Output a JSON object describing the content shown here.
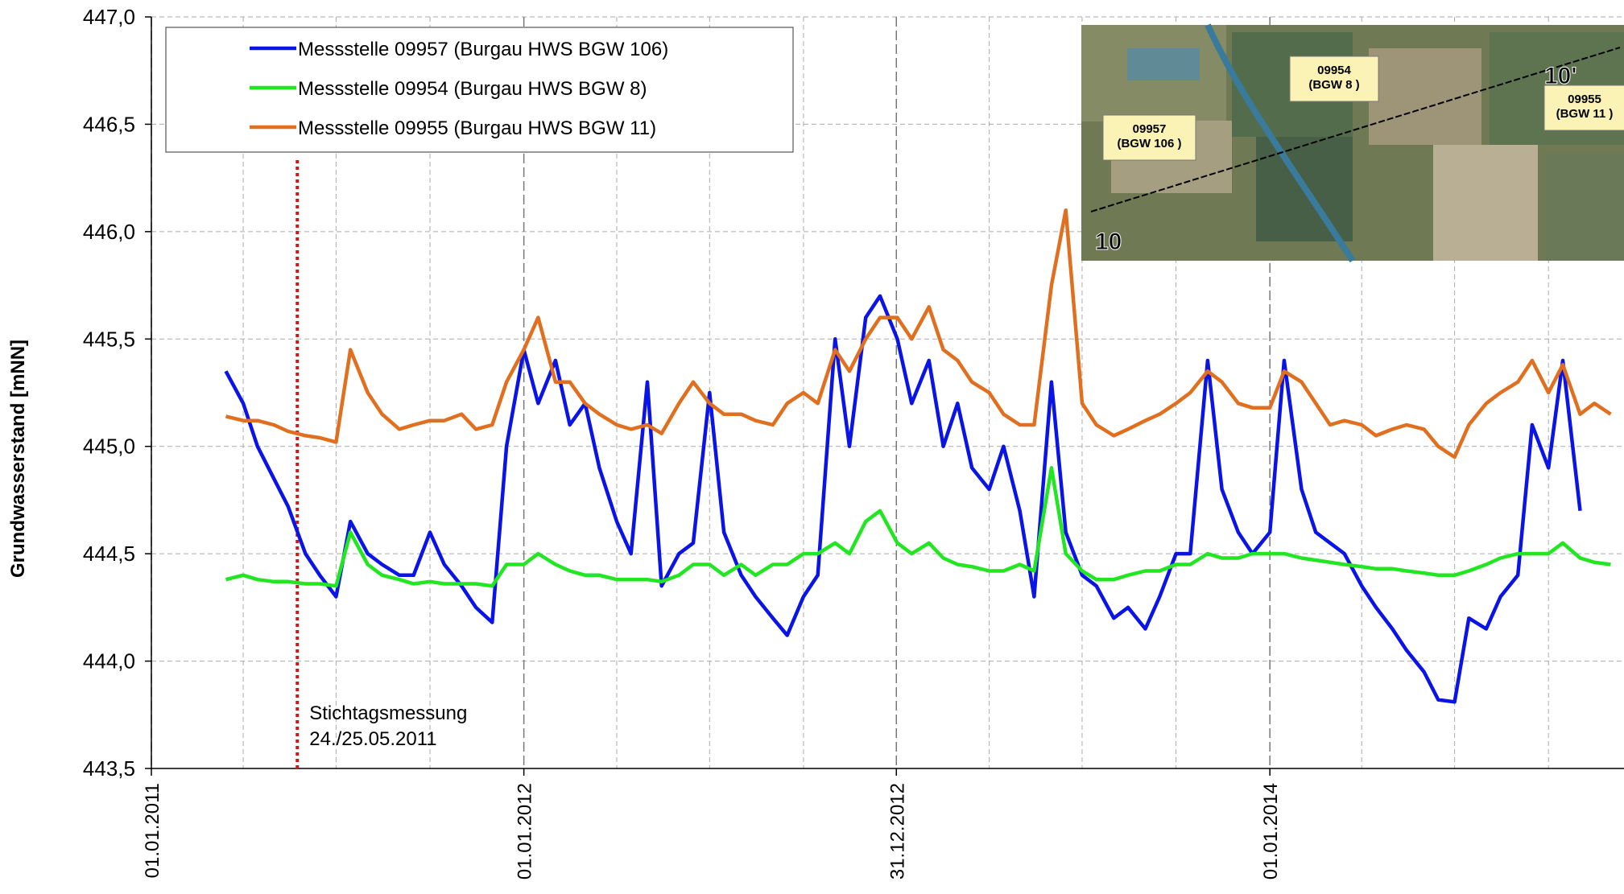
{
  "chart_data": {
    "type": "line",
    "y_label": "Grundwasserstand [mNN]",
    "ylim": [
      443.5,
      447.0
    ],
    "yticks": [
      {
        "value": 443.5,
        "label": "443,5"
      },
      {
        "value": 444,
        "label": "444,0"
      },
      {
        "value": 444.5,
        "label": "444,5"
      },
      {
        "value": 445,
        "label": "445,0"
      },
      {
        "value": 445.5,
        "label": "445,5"
      },
      {
        "value": 446,
        "label": "446,0"
      },
      {
        "value": 446.5,
        "label": "446,5"
      },
      {
        "value": 447,
        "label": "447,0"
      }
    ],
    "xlim": [
      "2011-01-01",
      "2014-12-14"
    ],
    "xticks": [
      {
        "value": "2011-01-01",
        "label": "01.01.2011"
      },
      {
        "value": "2012-01-01",
        "label": "01.01.2012"
      },
      {
        "value": "2012-12-31",
        "label": "31.12.2012"
      },
      {
        "value": "2014-01-01",
        "label": "01.01.2014"
      }
    ],
    "minor_xticks": [
      "2011-04-01",
      "2011-07-01",
      "2011-10-01",
      "2012-04-01",
      "2012-07-01",
      "2012-10-01",
      "2013-04-01",
      "2013-07-01",
      "2013-10-01",
      "2014-04-01",
      "2014-07-01",
      "2014-10-01"
    ],
    "grid": true,
    "legend": "upper-left",
    "x": [
      "2011-03-15",
      "2011-04-01",
      "2011-04-15",
      "2011-05-01",
      "2011-05-15",
      "2011-06-01",
      "2011-06-15",
      "2011-07-01",
      "2011-07-15",
      "2011-08-01",
      "2011-08-15",
      "2011-09-01",
      "2011-09-15",
      "2011-10-01",
      "2011-10-15",
      "2011-11-01",
      "2011-11-15",
      "2011-12-01",
      "2011-12-15",
      "2012-01-01",
      "2012-01-15",
      "2012-02-01",
      "2012-02-15",
      "2012-03-01",
      "2012-03-15",
      "2012-04-01",
      "2012-04-15",
      "2012-05-01",
      "2012-05-15",
      "2012-06-01",
      "2012-06-15",
      "2012-07-01",
      "2012-07-15",
      "2012-08-01",
      "2012-08-15",
      "2012-09-01",
      "2012-09-15",
      "2012-10-01",
      "2012-10-15",
      "2012-11-01",
      "2012-11-15",
      "2012-12-01",
      "2012-12-15",
      "2013-01-01",
      "2013-01-15",
      "2013-02-01",
      "2013-02-15",
      "2013-03-01",
      "2013-03-15",
      "2013-04-01",
      "2013-04-15",
      "2013-05-01",
      "2013-05-15",
      "2013-06-01",
      "2013-06-15",
      "2013-07-01",
      "2013-07-15",
      "2013-08-01",
      "2013-08-15",
      "2013-09-01",
      "2013-09-15",
      "2013-10-01",
      "2013-10-15",
      "2013-11-01",
      "2013-11-15",
      "2013-12-01",
      "2013-12-15",
      "2014-01-01",
      "2014-01-15",
      "2014-02-01",
      "2014-02-15",
      "2014-03-01",
      "2014-03-15",
      "2014-04-01",
      "2014-04-15",
      "2014-05-01",
      "2014-05-15",
      "2014-06-01",
      "2014-06-15",
      "2014-07-01",
      "2014-07-15",
      "2014-08-01",
      "2014-08-15",
      "2014-09-01",
      "2014-09-15",
      "2014-10-01",
      "2014-10-15",
      "2014-11-01",
      "2014-11-15",
      "2014-12-01"
    ],
    "series": [
      {
        "name": "Messstelle 09957 (Burgau HWS BGW 106)",
        "color": "#0a14e6",
        "values": [
          445.35,
          445.2,
          445.0,
          444.85,
          444.72,
          444.5,
          444.4,
          444.3,
          444.65,
          444.5,
          444.45,
          444.4,
          444.4,
          444.6,
          444.45,
          444.35,
          444.25,
          444.18,
          445.0,
          445.45,
          445.2,
          445.4,
          445.1,
          445.2,
          444.9,
          444.65,
          444.5,
          445.3,
          444.35,
          444.5,
          444.55,
          445.25,
          444.6,
          444.4,
          444.3,
          444.2,
          444.12,
          444.3,
          444.4,
          445.5,
          445.0,
          445.6,
          445.7,
          445.5,
          445.2,
          445.4,
          445.0,
          445.2,
          444.9,
          444.8,
          445.0,
          444.7,
          444.3,
          445.3,
          444.6,
          444.4,
          444.35,
          444.2,
          444.25,
          444.15,
          444.3,
          444.5,
          444.5,
          445.4,
          444.8,
          444.6,
          444.5,
          444.6,
          445.4,
          444.8,
          444.6,
          444.55,
          444.5,
          444.35,
          444.25,
          444.15,
          444.05,
          443.95,
          443.82,
          443.81,
          444.2,
          444.15,
          444.3,
          444.4,
          445.1,
          444.9,
          445.4,
          444.7,
          null,
          null
        ]
      },
      {
        "name": "Messstelle 09954 (Burgau HWS BGW 8)",
        "color": "#22e622",
        "values": [
          444.38,
          444.4,
          444.38,
          444.37,
          444.37,
          444.36,
          444.36,
          444.35,
          444.6,
          444.45,
          444.4,
          444.38,
          444.36,
          444.37,
          444.36,
          444.36,
          444.36,
          444.35,
          444.45,
          444.45,
          444.5,
          444.45,
          444.42,
          444.4,
          444.4,
          444.38,
          444.38,
          444.38,
          444.37,
          444.4,
          444.45,
          444.45,
          444.4,
          444.45,
          444.4,
          444.45,
          444.45,
          444.5,
          444.5,
          444.55,
          444.5,
          444.65,
          444.7,
          444.55,
          444.5,
          444.55,
          444.48,
          444.45,
          444.44,
          444.42,
          444.42,
          444.45,
          444.42,
          444.9,
          444.5,
          444.42,
          444.38,
          444.38,
          444.4,
          444.42,
          444.42,
          444.45,
          444.45,
          444.5,
          444.48,
          444.48,
          444.5,
          444.5,
          444.5,
          444.48,
          444.47,
          444.46,
          444.45,
          444.44,
          444.43,
          444.43,
          444.42,
          444.41,
          444.4,
          444.4,
          444.42,
          444.45,
          444.48,
          444.5,
          444.5,
          444.5,
          444.55,
          444.48,
          444.46,
          444.45
        ]
      },
      {
        "name": "Messstelle 09955 (Burgau HWS BGW 11)",
        "color": "#e07020",
        "values": [
          445.14,
          445.12,
          445.12,
          445.1,
          445.07,
          445.05,
          445.04,
          445.02,
          445.45,
          445.25,
          445.15,
          445.08,
          445.1,
          445.12,
          445.12,
          445.15,
          445.08,
          445.1,
          445.3,
          445.45,
          445.6,
          445.3,
          445.3,
          445.2,
          445.15,
          445.1,
          445.08,
          445.1,
          445.06,
          445.2,
          445.3,
          445.2,
          445.15,
          445.15,
          445.12,
          445.1,
          445.2,
          445.25,
          445.2,
          445.45,
          445.35,
          445.5,
          445.6,
          445.6,
          445.5,
          445.65,
          445.45,
          445.4,
          445.3,
          445.25,
          445.15,
          445.1,
          445.1,
          445.75,
          446.1,
          445.2,
          445.1,
          445.05,
          445.08,
          445.12,
          445.15,
          445.2,
          445.25,
          445.35,
          445.3,
          445.2,
          445.18,
          445.18,
          445.35,
          445.3,
          445.2,
          445.1,
          445.12,
          445.1,
          445.05,
          445.08,
          445.1,
          445.08,
          445.0,
          444.95,
          445.1,
          445.2,
          445.25,
          445.3,
          445.4,
          445.25,
          445.38,
          445.15,
          445.2,
          445.15
        ]
      }
    ],
    "marker_date": "2011-05-24",
    "marker_color": "#e01010",
    "annotations": [
      "Stichtagsmessung",
      "24./25.05.2011"
    ],
    "inset": {
      "labels": [
        [
          "09957",
          "(BGW 106 )"
        ],
        [
          "09954",
          "(BGW 8 )"
        ],
        [
          "09955",
          "(BGW 11 )"
        ]
      ],
      "section_start": "10",
      "section_end": "10'"
    }
  }
}
